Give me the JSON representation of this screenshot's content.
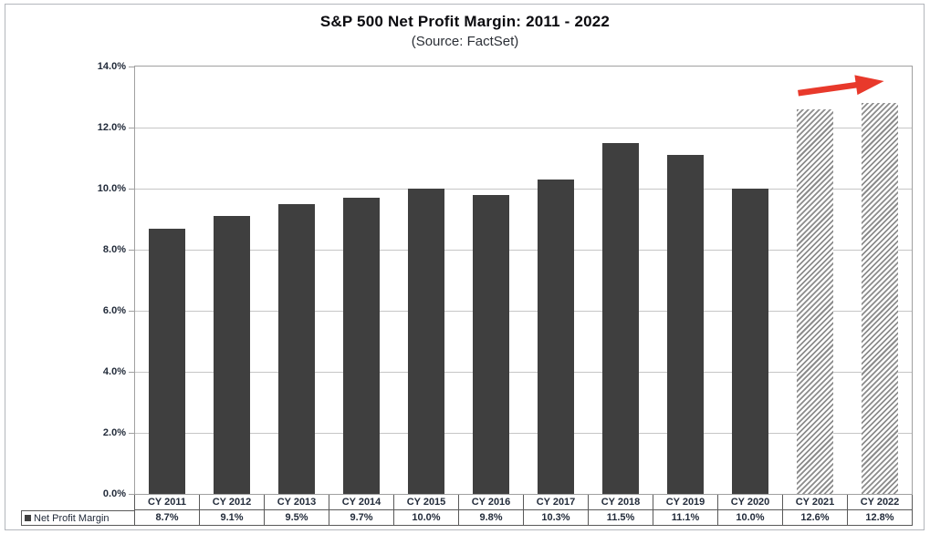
{
  "chart_data": {
    "type": "bar",
    "title": "S&P 500 Net Profit Margin: 2011 - 2022",
    "subtitle": "(Source: FactSet)",
    "categories": [
      "CY 2011",
      "CY 2012",
      "CY 2013",
      "CY 2014",
      "CY 2015",
      "CY 2016",
      "CY 2017",
      "CY 2018",
      "CY 2019",
      "CY 2020",
      "CY 2021",
      "CY 2022"
    ],
    "series": [
      {
        "name": "Net Profit Margin",
        "values": [
          8.7,
          9.1,
          9.5,
          9.7,
          10.0,
          9.8,
          10.3,
          11.5,
          11.1,
          10.0,
          12.6,
          12.8
        ],
        "value_labels": [
          "8.7%",
          "9.1%",
          "9.5%",
          "9.7%",
          "10.0%",
          "9.8%",
          "10.3%",
          "11.5%",
          "11.1%",
          "10.0%",
          "12.6%",
          "12.8%"
        ]
      }
    ],
    "ylim": [
      0,
      14
    ],
    "ytick_step": 2,
    "ytick_labels": [
      "0.0%",
      "2.0%",
      "4.0%",
      "6.0%",
      "8.0%",
      "10.0%",
      "12.0%",
      "14.0%"
    ],
    "grid": true,
    "data_table_shown": true,
    "hatched_categories": [
      "CY 2021",
      "CY 2022"
    ],
    "annotations": [
      {
        "type": "arrow",
        "direction": "up-right",
        "target": "CY 2022 bar top",
        "color": "#e8392b"
      }
    ],
    "colors": {
      "bar_solid": "#3f3f3f",
      "bar_hatch_stripe": "#8c8c8c",
      "gridline": "#c6c6c6",
      "plot_border": "#a0a0a0",
      "table_border": "#595959",
      "label_text": "#222b3a",
      "title_text": "#0b0b0f",
      "frame_border": "#b3b7bc",
      "arrow": "#e8392b"
    }
  }
}
